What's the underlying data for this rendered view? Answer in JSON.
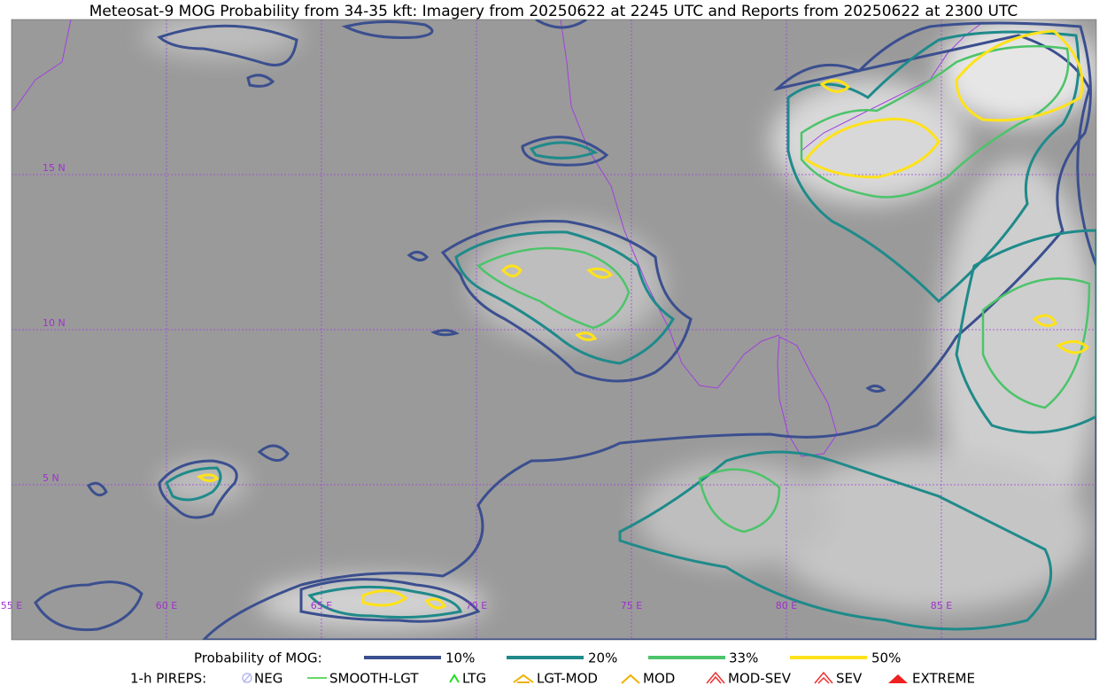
{
  "title": "Meteosat-9 MOG Probability from 34-35 kft: Imagery from 20250622 at 2245 UTC and Reports from 20250622 at 2300 UTC",
  "lat_labels": [
    "15 N",
    "10 N",
    "5 N"
  ],
  "lon_labels": [
    "55 E",
    "60 E",
    "65 E",
    "70 E",
    "75 E",
    "80 E",
    "85 E"
  ],
  "legend": {
    "probability_title": "Probability of MOG:",
    "probability_items": [
      "10%",
      "20%",
      "33%",
      "50%"
    ],
    "pireps_title": "1-h PIREPS:",
    "pireps_items": [
      "NEG",
      "SMOOTH-LGT",
      "LTG",
      "LGT-MOD",
      "MOD",
      "MOD-SEV",
      "SEV",
      "EXTREME"
    ]
  }
}
